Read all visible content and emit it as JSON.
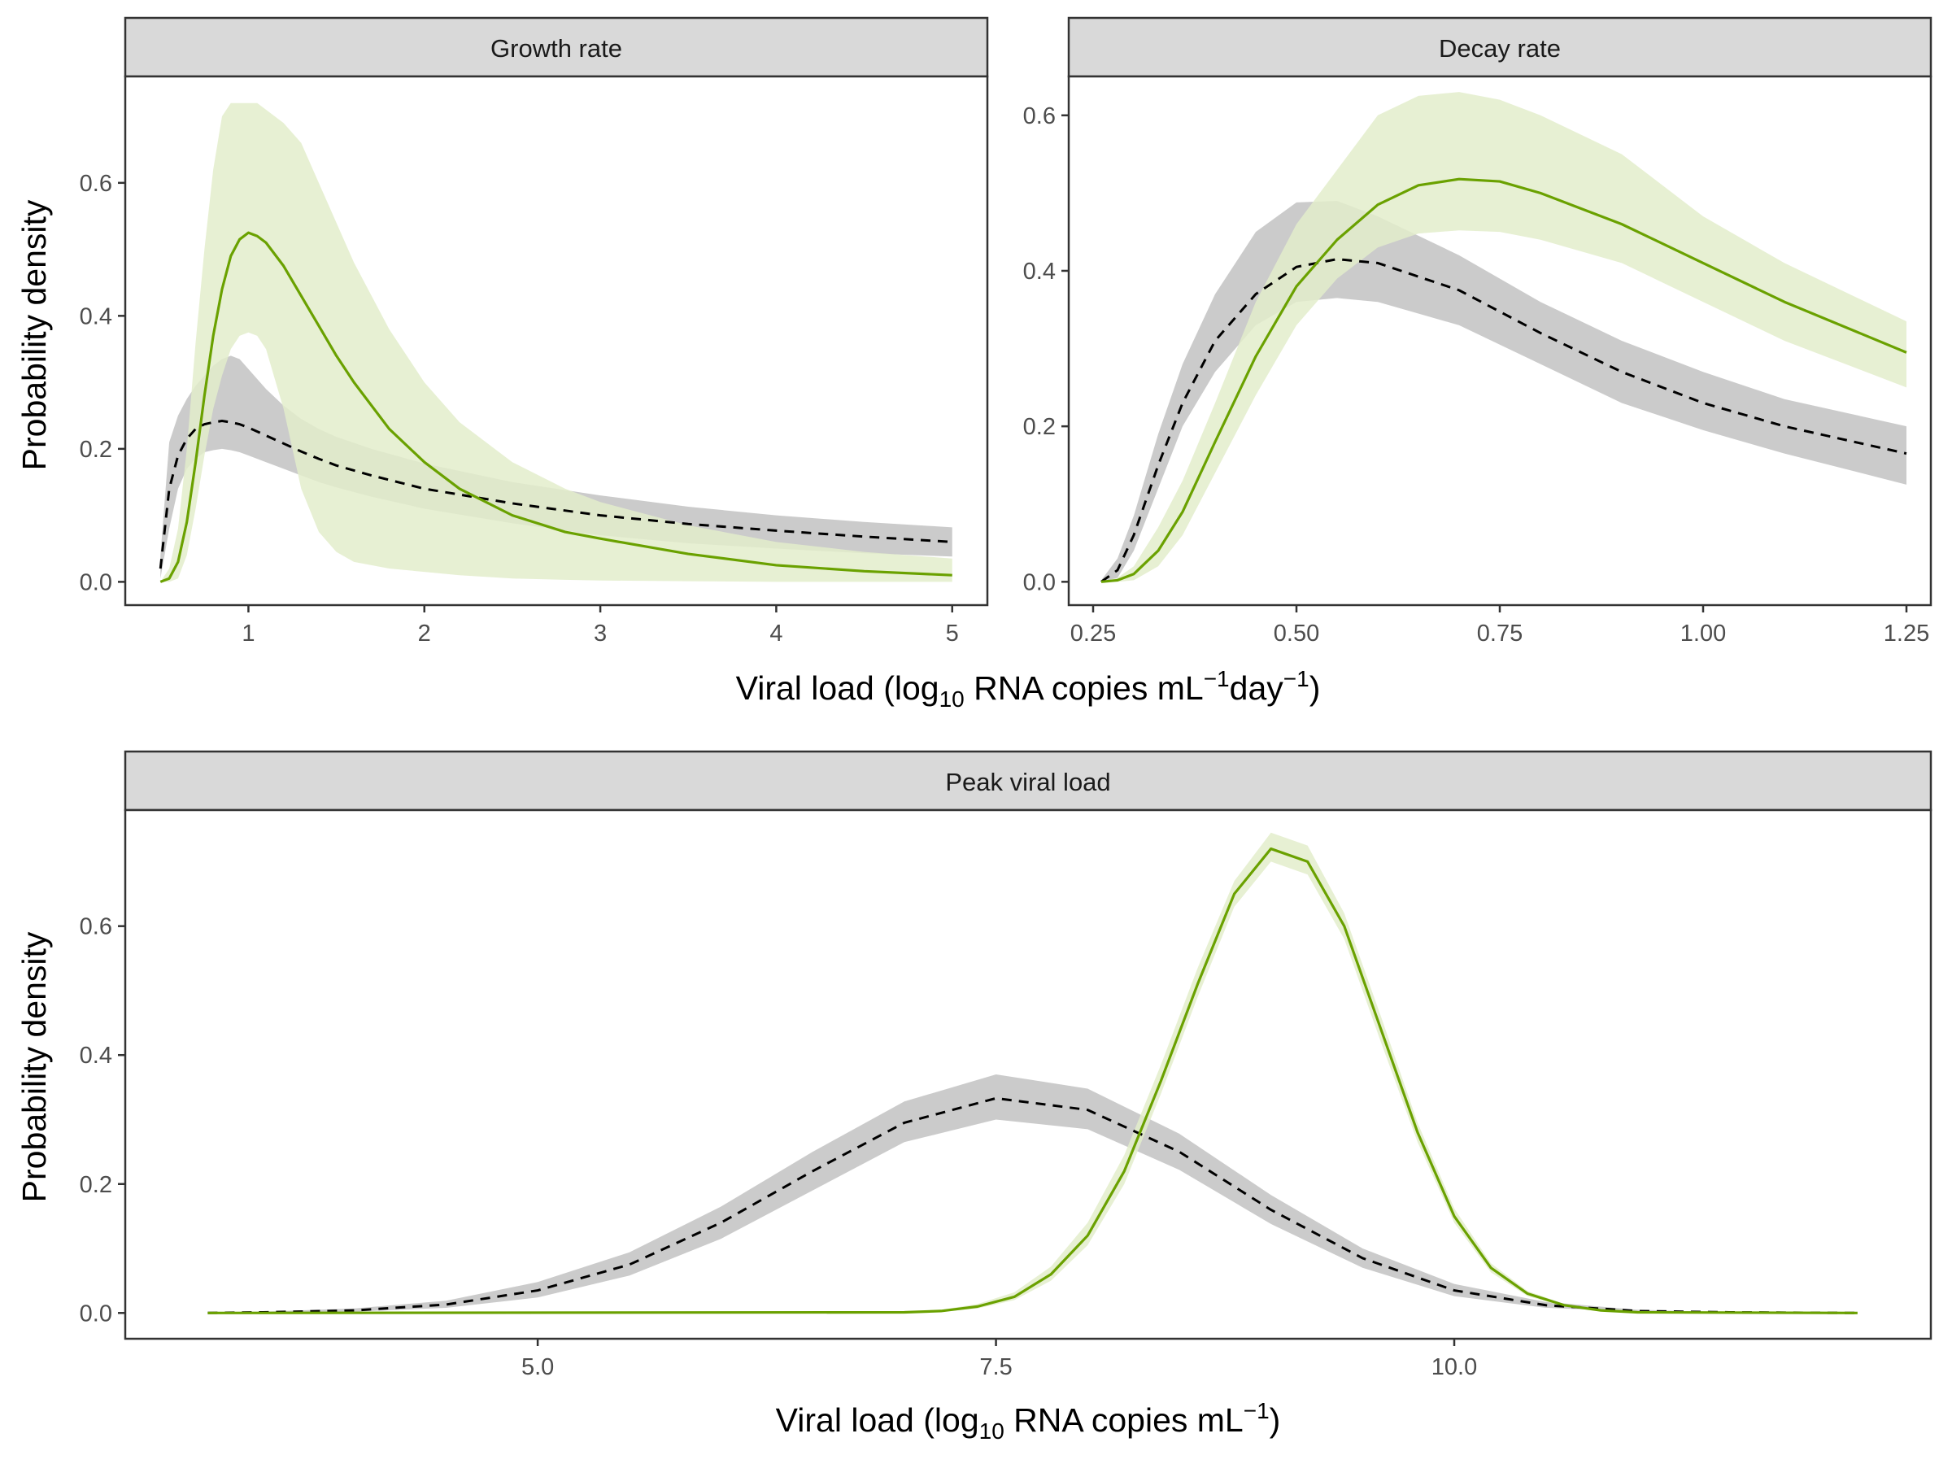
{
  "figure": {
    "xlabel_top": {
      "main": "Viral load (log",
      "sub": "10",
      "mid": " RNA copies mL",
      "sup1": "−1",
      "mid2": "day",
      "sup2": "−1",
      "end": ")"
    },
    "xlabel_bottom": {
      "main": "Viral load (log",
      "sub": "10",
      "mid": " RNA copies mL",
      "sup1": "−1",
      "end": ")"
    },
    "ylabel": "Probability density",
    "colors": {
      "green_line": "#6AA100",
      "green_ribbon": "#E3EDCB",
      "grey_ribbon": "#C8C8C8",
      "black_line": "#000000",
      "strip_fill": "#D9D9D9"
    }
  },
  "chart_data": [
    {
      "type": "line",
      "title": "Growth rate",
      "xlim": [
        0.3,
        5.2
      ],
      "ylim": [
        -0.035,
        0.76
      ],
      "xticks": [
        1,
        2,
        3,
        4,
        5
      ],
      "xtick_labels": [
        "1",
        "2",
        "3",
        "4",
        "5"
      ],
      "yticks": [
        0,
        0.2,
        0.4,
        0.6
      ],
      "ytick_labels": [
        "0.0",
        "0.2",
        "0.4",
        "0.6"
      ],
      "series": [
        {
          "style": "solid-green",
          "x": [
            0.5,
            0.55,
            0.6,
            0.65,
            0.7,
            0.75,
            0.8,
            0.85,
            0.9,
            0.95,
            1.0,
            1.05,
            1.1,
            1.2,
            1.3,
            1.4,
            1.5,
            1.6,
            1.8,
            2.0,
            2.2,
            2.5,
            2.8,
            3.0,
            3.5,
            4.0,
            4.5,
            5.0
          ],
          "y": [
            0.0,
            0.005,
            0.03,
            0.09,
            0.18,
            0.28,
            0.37,
            0.44,
            0.49,
            0.515,
            0.525,
            0.52,
            0.51,
            0.475,
            0.43,
            0.385,
            0.34,
            0.3,
            0.23,
            0.18,
            0.14,
            0.1,
            0.075,
            0.065,
            0.042,
            0.025,
            0.016,
            0.01
          ],
          "lower": [
            0.0,
            0.0,
            0.005,
            0.04,
            0.11,
            0.19,
            0.26,
            0.31,
            0.35,
            0.37,
            0.375,
            0.37,
            0.35,
            0.26,
            0.14,
            0.075,
            0.045,
            0.03,
            0.02,
            0.015,
            0.01,
            0.005,
            0.003,
            0.002,
            0.001,
            0.0,
            0.0,
            0.0
          ],
          "upper": [
            0.0,
            0.02,
            0.08,
            0.2,
            0.36,
            0.5,
            0.62,
            0.7,
            0.72,
            0.72,
            0.72,
            0.72,
            0.71,
            0.69,
            0.66,
            0.6,
            0.54,
            0.48,
            0.38,
            0.3,
            0.24,
            0.18,
            0.14,
            0.12,
            0.085,
            0.06,
            0.045,
            0.035
          ]
        },
        {
          "style": "dashed-black",
          "x": [
            0.5,
            0.55,
            0.6,
            0.65,
            0.7,
            0.75,
            0.8,
            0.85,
            0.9,
            0.95,
            1.0,
            1.1,
            1.2,
            1.3,
            1.4,
            1.5,
            1.7,
            2.0,
            2.5,
            3.0,
            3.5,
            4.0,
            4.5,
            5.0
          ],
          "y": [
            0.02,
            0.14,
            0.19,
            0.215,
            0.23,
            0.237,
            0.24,
            0.242,
            0.24,
            0.237,
            0.232,
            0.22,
            0.208,
            0.196,
            0.185,
            0.175,
            0.16,
            0.14,
            0.118,
            0.1,
            0.087,
            0.077,
            0.068,
            0.06
          ],
          "lower": [
            0.005,
            0.08,
            0.14,
            0.17,
            0.185,
            0.195,
            0.198,
            0.2,
            0.198,
            0.195,
            0.19,
            0.18,
            0.17,
            0.16,
            0.15,
            0.142,
            0.128,
            0.11,
            0.088,
            0.07,
            0.058,
            0.05,
            0.043,
            0.038
          ],
          "upper": [
            0.04,
            0.21,
            0.25,
            0.275,
            0.295,
            0.31,
            0.325,
            0.335,
            0.34,
            0.335,
            0.32,
            0.29,
            0.265,
            0.245,
            0.23,
            0.218,
            0.2,
            0.178,
            0.15,
            0.13,
            0.113,
            0.1,
            0.09,
            0.082
          ]
        }
      ]
    },
    {
      "type": "line",
      "title": "Decay rate",
      "xlim": [
        0.22,
        1.28
      ],
      "ylim": [
        -0.03,
        0.65
      ],
      "xticks": [
        0.25,
        0.5,
        0.75,
        1.0,
        1.25
      ],
      "xtick_labels": [
        "0.25",
        "0.50",
        "0.75",
        "1.00",
        "1.25"
      ],
      "yticks": [
        0,
        0.2,
        0.4,
        0.6
      ],
      "ytick_labels": [
        "0.0",
        "0.2",
        "0.4",
        "0.6"
      ],
      "series": [
        {
          "style": "solid-green",
          "x": [
            0.26,
            0.28,
            0.3,
            0.33,
            0.36,
            0.4,
            0.45,
            0.5,
            0.55,
            0.6,
            0.65,
            0.7,
            0.75,
            0.8,
            0.9,
            1.0,
            1.1,
            1.25
          ],
          "y": [
            0.0,
            0.002,
            0.01,
            0.04,
            0.09,
            0.18,
            0.29,
            0.38,
            0.44,
            0.485,
            0.51,
            0.518,
            0.515,
            0.5,
            0.46,
            0.41,
            0.36,
            0.295
          ],
          "lower": [
            0.0,
            0.0,
            0.002,
            0.02,
            0.06,
            0.14,
            0.24,
            0.33,
            0.39,
            0.43,
            0.448,
            0.452,
            0.45,
            0.44,
            0.41,
            0.36,
            0.31,
            0.25
          ],
          "upper": [
            0.0,
            0.005,
            0.02,
            0.07,
            0.13,
            0.23,
            0.36,
            0.46,
            0.53,
            0.6,
            0.625,
            0.63,
            0.62,
            0.6,
            0.55,
            0.47,
            0.41,
            0.335
          ]
        },
        {
          "style": "dashed-black",
          "x": [
            0.26,
            0.28,
            0.3,
            0.33,
            0.36,
            0.4,
            0.45,
            0.5,
            0.55,
            0.6,
            0.7,
            0.8,
            0.9,
            1.0,
            1.1,
            1.25
          ],
          "y": [
            0.0,
            0.015,
            0.06,
            0.15,
            0.23,
            0.31,
            0.37,
            0.405,
            0.415,
            0.41,
            0.375,
            0.32,
            0.27,
            0.23,
            0.2,
            0.165
          ],
          "lower": [
            0.0,
            0.005,
            0.04,
            0.12,
            0.2,
            0.27,
            0.33,
            0.36,
            0.365,
            0.36,
            0.33,
            0.28,
            0.23,
            0.195,
            0.165,
            0.125
          ],
          "upper": [
            0.002,
            0.03,
            0.085,
            0.19,
            0.28,
            0.37,
            0.45,
            0.488,
            0.49,
            0.47,
            0.42,
            0.36,
            0.31,
            0.27,
            0.235,
            0.2
          ]
        }
      ]
    },
    {
      "type": "line",
      "title": "Peak viral load",
      "xlim": [
        2.75,
        12.6
      ],
      "ylim": [
        -0.04,
        0.78
      ],
      "xticks": [
        5.0,
        7.5,
        10.0
      ],
      "xtick_labels": [
        "5.0",
        "7.5",
        "10.0"
      ],
      "yticks": [
        0,
        0.2,
        0.4,
        0.6
      ],
      "ytick_labels": [
        "0.0",
        "0.2",
        "0.4",
        "0.6"
      ],
      "series": [
        {
          "style": "solid-green",
          "x": [
            3.2,
            7.0,
            7.2,
            7.4,
            7.6,
            7.8,
            8.0,
            8.2,
            8.4,
            8.6,
            8.8,
            9.0,
            9.2,
            9.4,
            9.6,
            9.8,
            10.0,
            10.2,
            10.4,
            10.6,
            10.8,
            11.0,
            12.2
          ],
          "y": [
            0.0,
            0.001,
            0.003,
            0.01,
            0.025,
            0.06,
            0.12,
            0.22,
            0.36,
            0.51,
            0.65,
            0.72,
            0.7,
            0.6,
            0.44,
            0.28,
            0.15,
            0.07,
            0.03,
            0.012,
            0.004,
            0.001,
            0.0
          ],
          "lower": [
            0.0,
            0.0,
            0.002,
            0.007,
            0.02,
            0.05,
            0.105,
            0.2,
            0.34,
            0.49,
            0.63,
            0.7,
            0.68,
            0.58,
            0.42,
            0.265,
            0.14,
            0.063,
            0.026,
            0.01,
            0.003,
            0.001,
            0.0
          ],
          "upper": [
            0.0,
            0.002,
            0.005,
            0.014,
            0.032,
            0.072,
            0.14,
            0.245,
            0.385,
            0.535,
            0.67,
            0.745,
            0.725,
            0.62,
            0.46,
            0.295,
            0.162,
            0.077,
            0.034,
            0.014,
            0.005,
            0.002,
            0.0
          ]
        },
        {
          "style": "dashed-black",
          "x": [
            3.2,
            3.5,
            4.0,
            4.5,
            5.0,
            5.5,
            6.0,
            6.5,
            7.0,
            7.5,
            8.0,
            8.5,
            9.0,
            9.5,
            10.0,
            10.5,
            11.0,
            11.5,
            12.2
          ],
          "y": [
            0.0,
            0.001,
            0.004,
            0.013,
            0.035,
            0.075,
            0.14,
            0.22,
            0.295,
            0.333,
            0.315,
            0.25,
            0.16,
            0.085,
            0.035,
            0.012,
            0.003,
            0.001,
            0.0
          ],
          "lower": [
            0.0,
            0.0,
            0.002,
            0.008,
            0.024,
            0.058,
            0.115,
            0.19,
            0.265,
            0.3,
            0.285,
            0.222,
            0.138,
            0.07,
            0.026,
            0.008,
            0.002,
            0.0,
            0.0
          ],
          "upper": [
            0.001,
            0.002,
            0.007,
            0.019,
            0.048,
            0.094,
            0.165,
            0.25,
            0.328,
            0.37,
            0.348,
            0.278,
            0.183,
            0.1,
            0.045,
            0.017,
            0.005,
            0.001,
            0.0
          ]
        }
      ]
    }
  ]
}
